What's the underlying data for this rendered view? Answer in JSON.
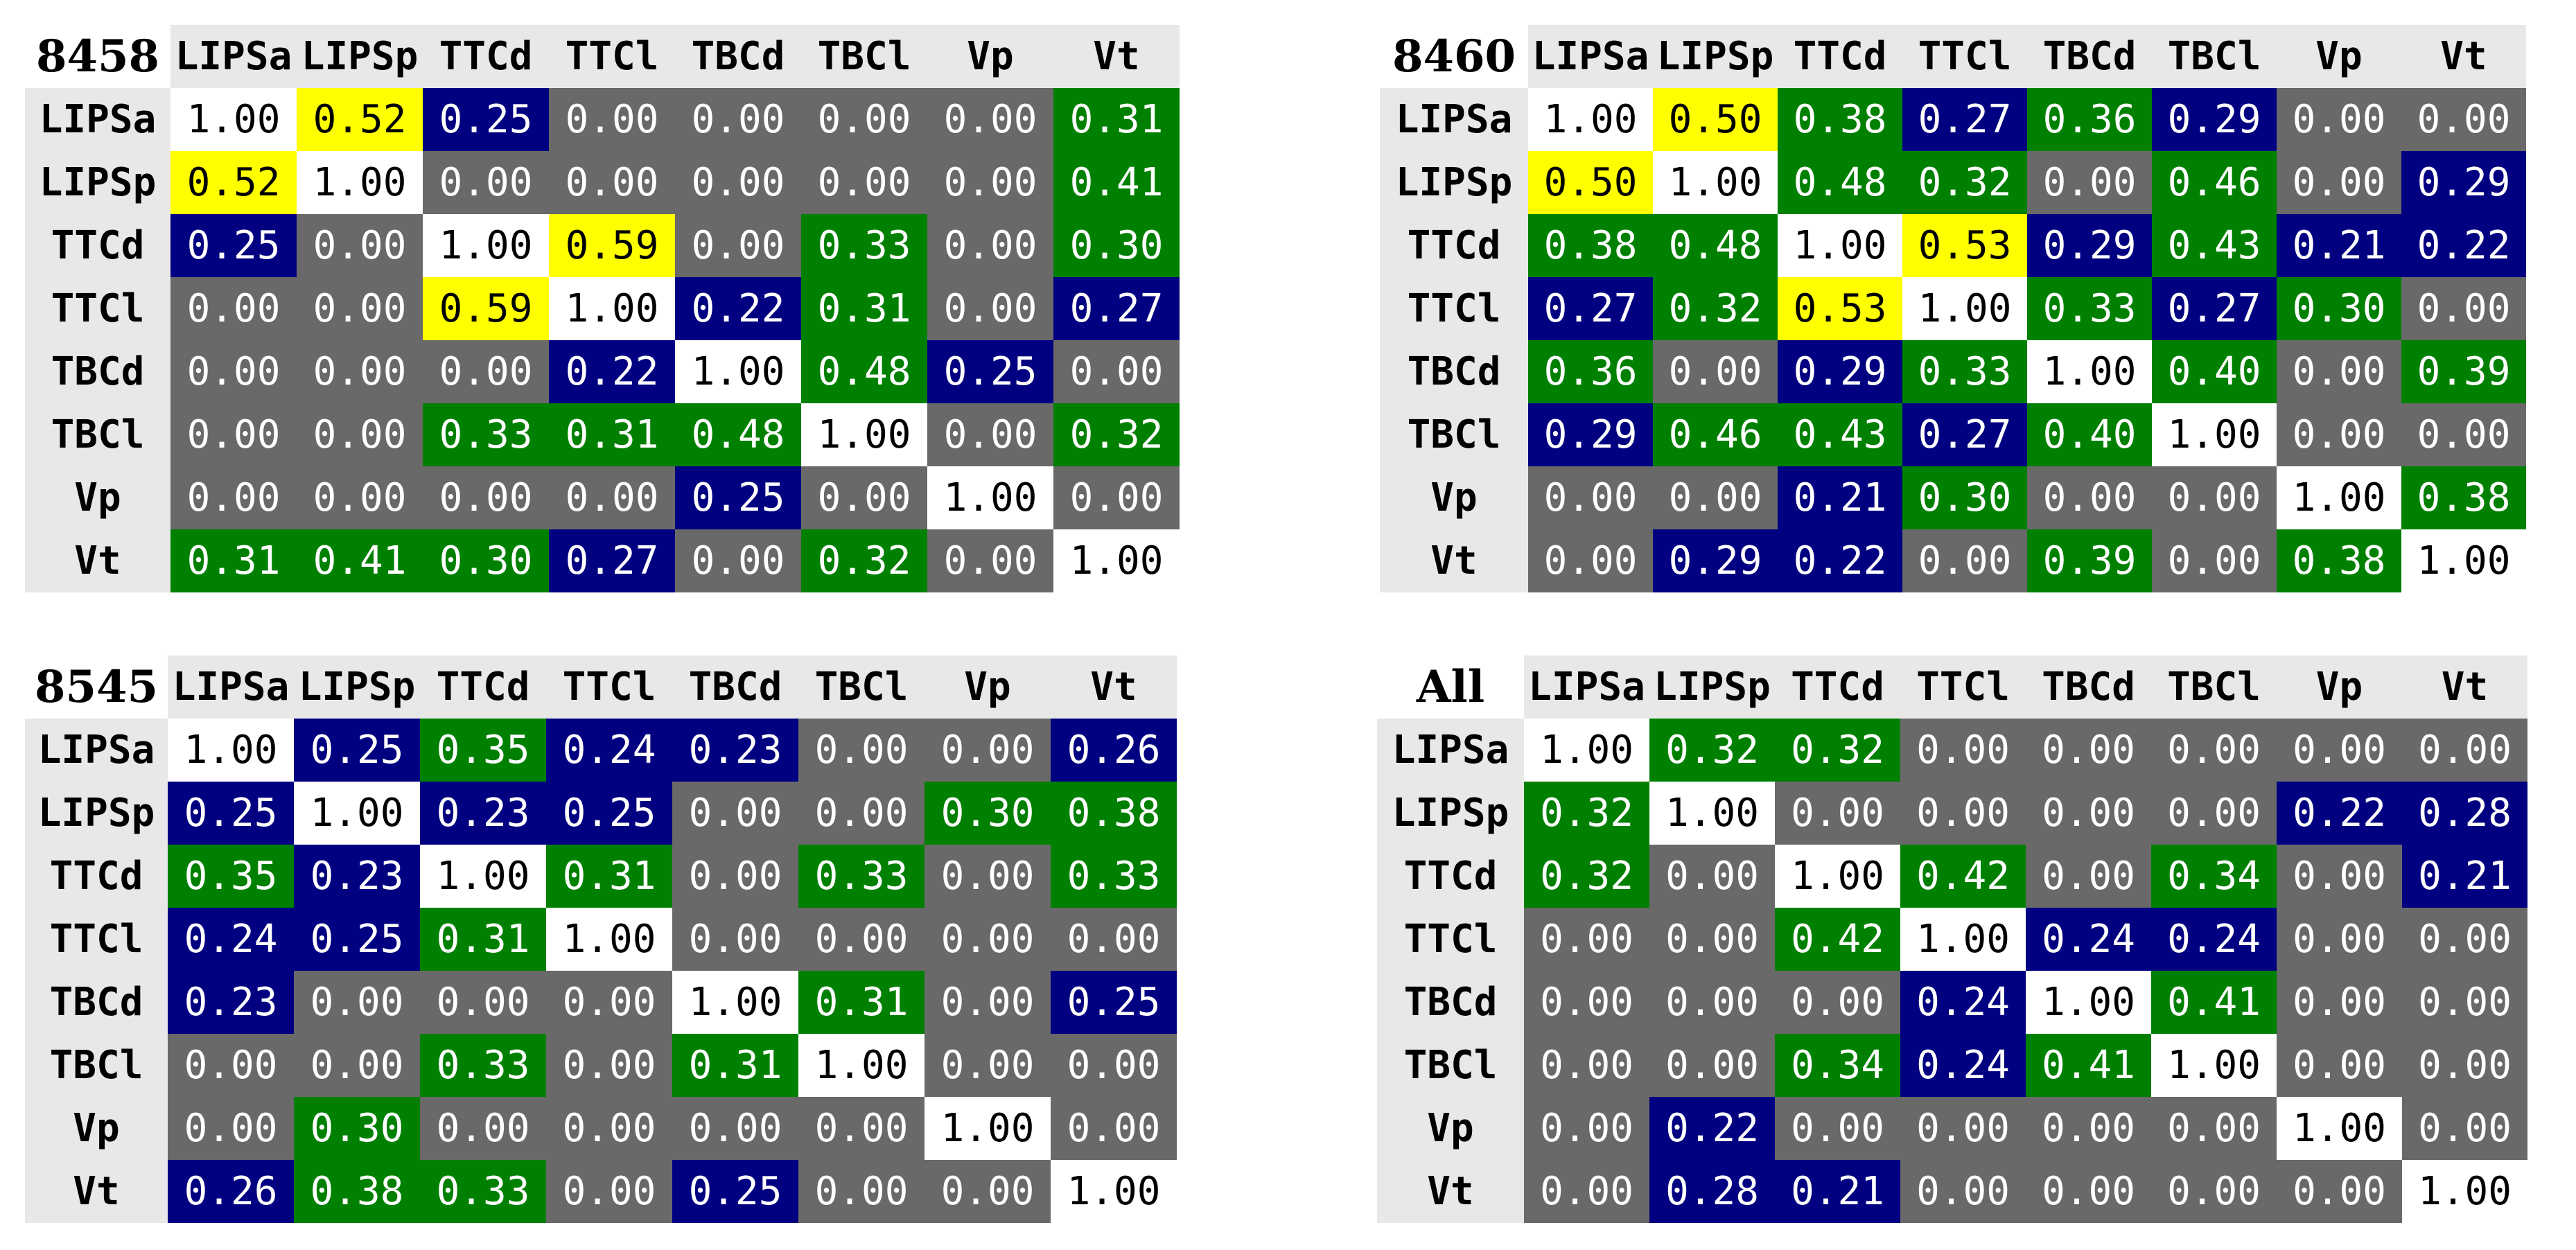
{
  "chart_data": [
    {
      "type": "heatmap",
      "title": "8458",
      "labels": [
        "LIPSa",
        "LIPSp",
        "TTCd",
        "TTCl",
        "TBCd",
        "TBCl",
        "Vp",
        "Vt"
      ],
      "values": [
        [
          "1.00",
          "0.52",
          "0.25",
          "0.00",
          "0.00",
          "0.00",
          "0.00",
          "0.31"
        ],
        [
          "0.52",
          "1.00",
          "0.00",
          "0.00",
          "0.00",
          "0.00",
          "0.00",
          "0.41"
        ],
        [
          "0.25",
          "0.00",
          "1.00",
          "0.59",
          "0.00",
          "0.33",
          "0.00",
          "0.30"
        ],
        [
          "0.00",
          "0.00",
          "0.59",
          "1.00",
          "0.22",
          "0.31",
          "0.00",
          "0.27"
        ],
        [
          "0.00",
          "0.00",
          "0.00",
          "0.22",
          "1.00",
          "0.48",
          "0.25",
          "0.00"
        ],
        [
          "0.00",
          "0.00",
          "0.33",
          "0.31",
          "0.48",
          "1.00",
          "0.00",
          "0.32"
        ],
        [
          "0.00",
          "0.00",
          "0.00",
          "0.00",
          "0.25",
          "0.00",
          "1.00",
          "0.00"
        ],
        [
          "0.31",
          "0.41",
          "0.30",
          "0.27",
          "0.00",
          "0.32",
          "0.00",
          "1.00"
        ]
      ]
    },
    {
      "type": "heatmap",
      "title": "8460",
      "labels": [
        "LIPSa",
        "LIPSp",
        "TTCd",
        "TTCl",
        "TBCd",
        "TBCl",
        "Vp",
        "Vt"
      ],
      "values": [
        [
          "1.00",
          "0.50",
          "0.38",
          "0.27",
          "0.36",
          "0.29",
          "0.00",
          "0.00"
        ],
        [
          "0.50",
          "1.00",
          "0.48",
          "0.32",
          "0.00",
          "0.46",
          "0.00",
          "0.29"
        ],
        [
          "0.38",
          "0.48",
          "1.00",
          "0.53",
          "0.29",
          "0.43",
          "0.21",
          "0.22"
        ],
        [
          "0.27",
          "0.32",
          "0.53",
          "1.00",
          "0.33",
          "0.27",
          "0.30",
          "0.00"
        ],
        [
          "0.36",
          "0.00",
          "0.29",
          "0.33",
          "1.00",
          "0.40",
          "0.00",
          "0.39"
        ],
        [
          "0.29",
          "0.46",
          "0.43",
          "0.27",
          "0.40",
          "1.00",
          "0.00",
          "0.00"
        ],
        [
          "0.00",
          "0.00",
          "0.21",
          "0.30",
          "0.00",
          "0.00",
          "1.00",
          "0.38"
        ],
        [
          "0.00",
          "0.29",
          "0.22",
          "0.00",
          "0.39",
          "0.00",
          "0.38",
          "1.00"
        ]
      ]
    },
    {
      "type": "heatmap",
      "title": "8545",
      "labels": [
        "LIPSa",
        "LIPSp",
        "TTCd",
        "TTCl",
        "TBCd",
        "TBCl",
        "Vp",
        "Vt"
      ],
      "values": [
        [
          "1.00",
          "0.25",
          "0.35",
          "0.24",
          "0.23",
          "0.00",
          "0.00",
          "0.26"
        ],
        [
          "0.25",
          "1.00",
          "0.23",
          "0.25",
          "0.00",
          "0.00",
          "0.30",
          "0.38"
        ],
        [
          "0.35",
          "0.23",
          "1.00",
          "0.31",
          "0.00",
          "0.33",
          "0.00",
          "0.33"
        ],
        [
          "0.24",
          "0.25",
          "0.31",
          "1.00",
          "0.00",
          "0.00",
          "0.00",
          "0.00"
        ],
        [
          "0.23",
          "0.00",
          "0.00",
          "0.00",
          "1.00",
          "0.31",
          "0.00",
          "0.25"
        ],
        [
          "0.00",
          "0.00",
          "0.33",
          "0.00",
          "0.31",
          "1.00",
          "0.00",
          "0.00"
        ],
        [
          "0.00",
          "0.30",
          "0.00",
          "0.00",
          "0.00",
          "0.00",
          "1.00",
          "0.00"
        ],
        [
          "0.26",
          "0.38",
          "0.33",
          "0.00",
          "0.25",
          "0.00",
          "0.00",
          "1.00"
        ]
      ]
    },
    {
      "type": "heatmap",
      "title": "All",
      "labels": [
        "LIPSa",
        "LIPSp",
        "TTCd",
        "TTCl",
        "TBCd",
        "TBCl",
        "Vp",
        "Vt"
      ],
      "values": [
        [
          "1.00",
          "0.32",
          "0.32",
          "0.00",
          "0.00",
          "0.00",
          "0.00",
          "0.00"
        ],
        [
          "0.32",
          "1.00",
          "0.00",
          "0.00",
          "0.00",
          "0.00",
          "0.22",
          "0.28"
        ],
        [
          "0.32",
          "0.00",
          "1.00",
          "0.42",
          "0.00",
          "0.34",
          "0.00",
          "0.21"
        ],
        [
          "0.00",
          "0.00",
          "0.42",
          "1.00",
          "0.24",
          "0.24",
          "0.00",
          "0.00"
        ],
        [
          "0.00",
          "0.00",
          "0.00",
          "0.24",
          "1.00",
          "0.41",
          "0.00",
          "0.00"
        ],
        [
          "0.00",
          "0.00",
          "0.34",
          "0.24",
          "0.41",
          "1.00",
          "0.00",
          "0.00"
        ],
        [
          "0.00",
          "0.22",
          "0.00",
          "0.00",
          "0.00",
          "0.00",
          "1.00",
          "0.00"
        ],
        [
          "0.00",
          "0.28",
          "0.21",
          "0.00",
          "0.00",
          "0.00",
          "0.00",
          "1.00"
        ]
      ]
    }
  ],
  "colors": {
    "diagonal": "#ffffff",
    "yellow": "#ffff00",
    "blue": "#000080",
    "green": "#008000",
    "gray": "#696969",
    "header_bg": "#e8e8e8"
  }
}
